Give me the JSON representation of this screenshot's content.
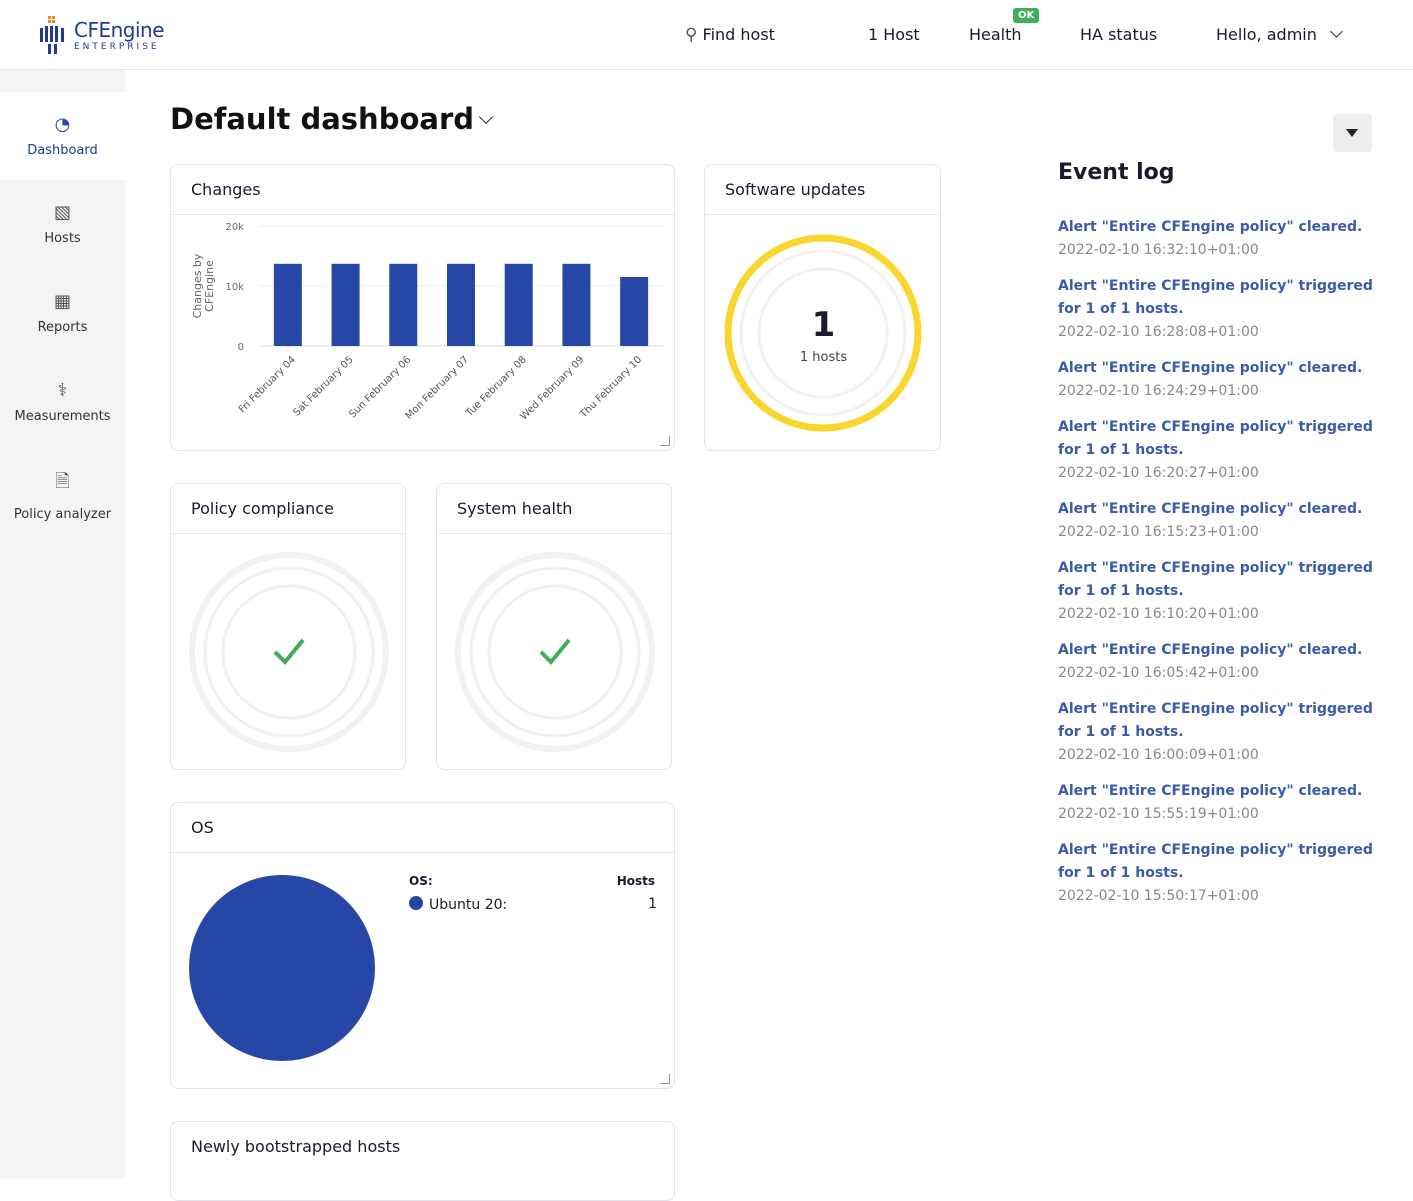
{
  "header": {
    "logo_main": "CFEngine",
    "logo_sub": "ENTERPRISE",
    "find_host": "Find host",
    "hosts": "1 Host",
    "health": "Health",
    "health_badge": "OK",
    "ha_status": "HA status",
    "user": "Hello, admin"
  },
  "sidebar": {
    "items": [
      {
        "label": "Dashboard",
        "icon": "gauge-icon"
      },
      {
        "label": "Hosts",
        "icon": "hierarchy-icon"
      },
      {
        "label": "Reports",
        "icon": "table-icon"
      },
      {
        "label": "Measurements",
        "icon": "stethoscope-icon"
      },
      {
        "label": "Policy analyzer",
        "icon": "file-icon"
      }
    ]
  },
  "dashboard": {
    "title": "Default dashboard"
  },
  "widgets": {
    "changes": "Changes",
    "software": "Software updates",
    "software_value": "1",
    "software_unit": "1 hosts",
    "compliance": "Policy compliance",
    "health": "System health",
    "os": "OS",
    "os_col": "OS:",
    "hosts_col": "Hosts",
    "os_rows": [
      {
        "name": "Ubuntu 20:",
        "count": "1"
      }
    ],
    "newly": "Newly bootstrapped hosts"
  },
  "colors": {
    "accent": "#2747a6",
    "gauge": "#f9d62e",
    "ok": "#3fae5a"
  },
  "chart_data": {
    "type": "bar",
    "ylabel": "Changes by CFEngine",
    "ylim": [
      0,
      20000
    ],
    "yticks": [
      "0",
      "10k",
      "20k"
    ],
    "categories": [
      "Fri February 04",
      "Sat February 05",
      "Sun February 06",
      "Mon February 07",
      "Tue February 08",
      "Wed February 09",
      "Thu February 10"
    ],
    "values": [
      13700,
      13700,
      13700,
      13700,
      13700,
      13700,
      11500
    ],
    "grid": true
  },
  "eventlog": {
    "title": "Event log",
    "events": [
      {
        "text": "Alert \"Entire CFEngine policy\" cleared.",
        "time": "2022-02-10 16:32:10+01:00"
      },
      {
        "text": "Alert \"Entire CFEngine policy\" triggered for 1 of 1 hosts.",
        "time": "2022-02-10 16:28:08+01:00"
      },
      {
        "text": "Alert \"Entire CFEngine policy\" cleared.",
        "time": "2022-02-10 16:24:29+01:00"
      },
      {
        "text": "Alert \"Entire CFEngine policy\" triggered for 1 of 1 hosts.",
        "time": "2022-02-10 16:20:27+01:00"
      },
      {
        "text": "Alert \"Entire CFEngine policy\" cleared.",
        "time": "2022-02-10 16:15:23+01:00"
      },
      {
        "text": "Alert \"Entire CFEngine policy\" triggered for 1 of 1 hosts.",
        "time": "2022-02-10 16:10:20+01:00"
      },
      {
        "text": "Alert \"Entire CFEngine policy\" cleared.",
        "time": "2022-02-10 16:05:42+01:00"
      },
      {
        "text": "Alert \"Entire CFEngine policy\" triggered for 1 of 1 hosts.",
        "time": "2022-02-10 16:00:09+01:00"
      },
      {
        "text": "Alert \"Entire CFEngine policy\" cleared.",
        "time": "2022-02-10 15:55:19+01:00"
      },
      {
        "text": "Alert \"Entire CFEngine policy\" triggered for 1 of 1 hosts.",
        "time": "2022-02-10 15:50:17+01:00"
      }
    ]
  }
}
